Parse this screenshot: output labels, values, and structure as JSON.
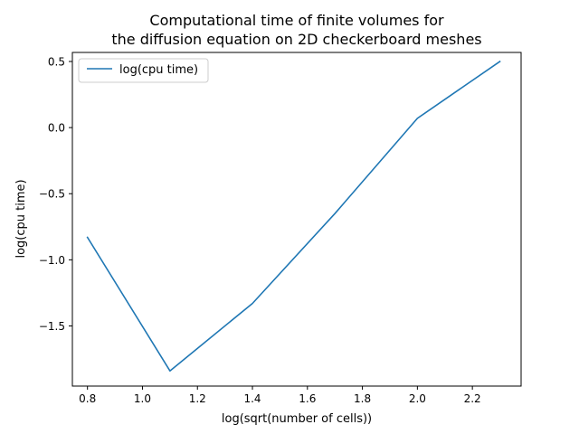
{
  "chart_data": {
    "type": "line",
    "title_line1": "Computational time of finite volumes for",
    "title_line2": "the diffusion equation on 2D checkerboard meshes",
    "xlabel": "log(sqrt(number of cells))",
    "ylabel": "log(cpu time)",
    "xlim": [
      0.7451,
      2.3772
    ],
    "ylim": [
      -1.9549,
      0.5683
    ],
    "xticks": [
      0.8,
      1.0,
      1.2,
      1.4,
      1.6,
      1.8,
      2.0,
      2.2
    ],
    "xtick_labels": [
      "0.8",
      "1.0",
      "1.2",
      "1.4",
      "1.6",
      "1.8",
      "2.0",
      "2.2"
    ],
    "yticks": [
      -1.5,
      -1.0,
      -0.5,
      0.0,
      0.5
    ],
    "ytick_labels": [
      "−1.5",
      "−1.0",
      "−0.5",
      "0.0",
      "0.5"
    ],
    "grid": false,
    "legend_position": "upper-left",
    "series": [
      {
        "name": "log(cpu time)",
        "color": "#1f77b4",
        "x": [
          0.8,
          1.1,
          1.4,
          1.7,
          2.0,
          2.3
        ],
        "y": [
          -0.83,
          -1.84,
          -1.33,
          -0.65,
          0.07,
          0.5
        ]
      }
    ]
  }
}
